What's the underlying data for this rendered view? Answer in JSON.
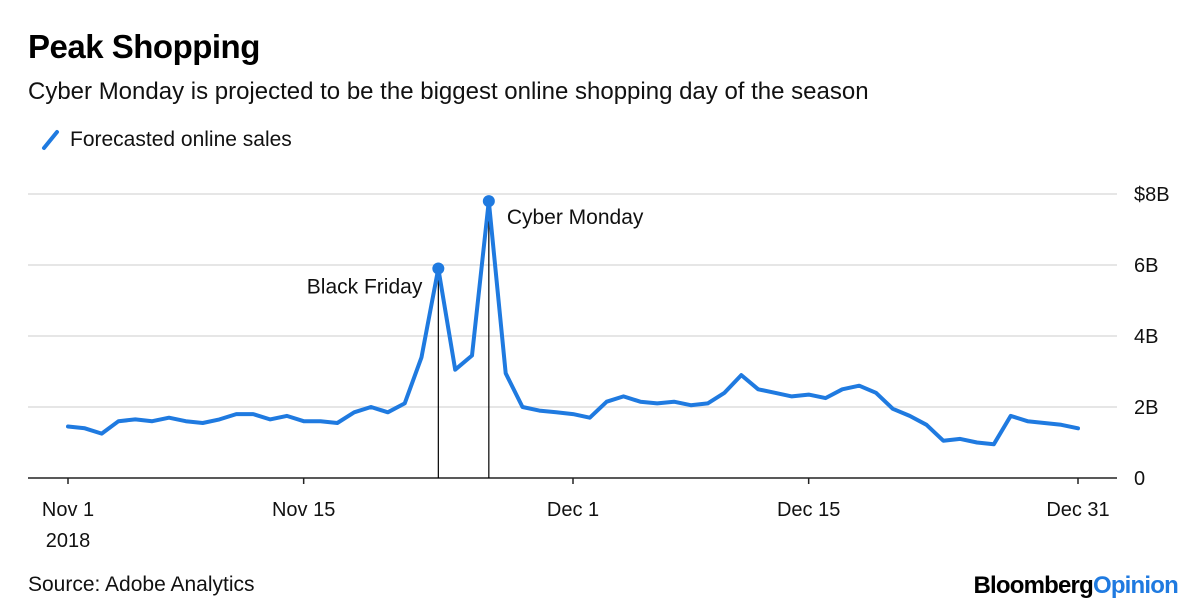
{
  "title": "Peak Shopping",
  "subtitle": "Cyber Monday is projected to be the biggest online shopping day of the season",
  "source": "Source: Adobe Analytics",
  "brand": {
    "part1": "Bloomberg",
    "part2": "Opinion"
  },
  "colors": {
    "line": "#1f7ae0",
    "grid": "#e6e6e6",
    "axis": "#222222",
    "annotation": "#000000"
  },
  "chart_data": {
    "type": "line",
    "series": [
      {
        "name": "Forecasted online sales",
        "x": [
          "2018-11-01",
          "2018-11-02",
          "2018-11-03",
          "2018-11-04",
          "2018-11-05",
          "2018-11-06",
          "2018-11-07",
          "2018-11-08",
          "2018-11-09",
          "2018-11-10",
          "2018-11-11",
          "2018-11-12",
          "2018-11-13",
          "2018-11-14",
          "2018-11-15",
          "2018-11-16",
          "2018-11-17",
          "2018-11-18",
          "2018-11-19",
          "2018-11-20",
          "2018-11-21",
          "2018-11-22",
          "2018-11-23",
          "2018-11-24",
          "2018-11-25",
          "2018-11-26",
          "2018-11-27",
          "2018-11-28",
          "2018-11-29",
          "2018-11-30",
          "2018-12-01",
          "2018-12-02",
          "2018-12-03",
          "2018-12-04",
          "2018-12-05",
          "2018-12-06",
          "2018-12-07",
          "2018-12-08",
          "2018-12-09",
          "2018-12-10",
          "2018-12-11",
          "2018-12-12",
          "2018-12-13",
          "2018-12-14",
          "2018-12-15",
          "2018-12-16",
          "2018-12-17",
          "2018-12-18",
          "2018-12-19",
          "2018-12-20",
          "2018-12-21",
          "2018-12-22",
          "2018-12-23",
          "2018-12-24",
          "2018-12-25",
          "2018-12-26",
          "2018-12-27",
          "2018-12-28",
          "2018-12-29",
          "2018-12-30",
          "2018-12-31"
        ],
        "values": [
          1.45,
          1.4,
          1.25,
          1.6,
          1.65,
          1.6,
          1.7,
          1.6,
          1.55,
          1.65,
          1.8,
          1.8,
          1.65,
          1.75,
          1.6,
          1.6,
          1.55,
          1.85,
          2.0,
          1.85,
          2.1,
          3.4,
          5.9,
          3.05,
          3.45,
          7.8,
          2.95,
          2.0,
          1.9,
          1.85,
          1.8,
          1.7,
          2.15,
          2.3,
          2.15,
          2.1,
          2.15,
          2.05,
          2.1,
          2.4,
          2.9,
          2.5,
          2.4,
          2.3,
          2.35,
          2.25,
          2.5,
          2.6,
          2.4,
          1.95,
          1.75,
          1.5,
          1.05,
          1.1,
          1.0,
          0.95,
          1.75,
          1.6,
          1.55,
          1.5,
          1.4
        ]
      }
    ],
    "ylim": [
      0,
      8
    ],
    "yticks": [
      "$8B",
      "6B",
      "4B",
      "2B",
      "0"
    ],
    "xticks": [
      {
        "label": "Nov 1",
        "sublabel": "2018",
        "date": "2018-11-01"
      },
      {
        "label": "Nov 15",
        "sublabel": "",
        "date": "2018-11-15"
      },
      {
        "label": "Dec 1",
        "sublabel": "",
        "date": "2018-12-01"
      },
      {
        "label": "Dec 15",
        "sublabel": "",
        "date": "2018-12-15"
      },
      {
        "label": "Dec 31",
        "sublabel": "",
        "date": "2018-12-31"
      }
    ],
    "annotations": [
      {
        "label": "Black Friday",
        "date": "2018-11-23",
        "value": 5.9
      },
      {
        "label": "Cyber Monday",
        "date": "2018-11-26",
        "value": 7.8
      }
    ],
    "grid": true,
    "legend_position": "top-left"
  }
}
